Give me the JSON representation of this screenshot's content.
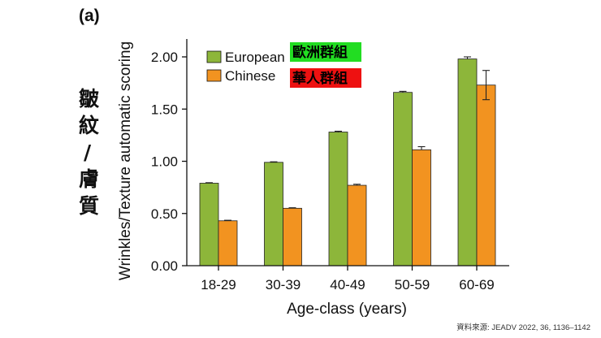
{
  "panel_label": "(a)",
  "side_label_chars": [
    "皺",
    "紋",
    "/",
    "膚",
    "質"
  ],
  "legend_tags": [
    {
      "text": "歐洲群組",
      "color": "#22dd22"
    },
    {
      "text": "華人群組",
      "color": "#ee1111"
    }
  ],
  "source_note": "資料來源: JEADV 2022, 36, 1136–1142",
  "colors": {
    "european": "#8db63a",
    "chinese": "#f29320",
    "axis": "#111111"
  },
  "chart_data": {
    "type": "bar",
    "title": "",
    "xlabel": "Age-class (years)",
    "ylabel": "Wrinkles/Texture automatic scoring",
    "categories": [
      "18-29",
      "30-39",
      "40-49",
      "50-59",
      "60-69"
    ],
    "ylim": [
      0,
      2.2
    ],
    "yticks": [
      0,
      0.5,
      1.0,
      1.5,
      2.0
    ],
    "ytick_labels": [
      "0.00",
      "0.50",
      "1.00",
      "1.50",
      "2.00"
    ],
    "grid": false,
    "legend_position": "top-left",
    "series": [
      {
        "name": "European",
        "values": [
          0.79,
          0.99,
          1.28,
          1.66,
          1.98
        ],
        "errors": [
          0.005,
          0.005,
          0.008,
          0.01,
          0.02
        ],
        "color": "#8db63a"
      },
      {
        "name": "Chinese",
        "values": [
          0.43,
          0.55,
          0.77,
          1.11,
          1.73
        ],
        "errors": [
          0.005,
          0.005,
          0.01,
          0.03,
          0.14
        ],
        "color": "#f29320"
      }
    ]
  }
}
